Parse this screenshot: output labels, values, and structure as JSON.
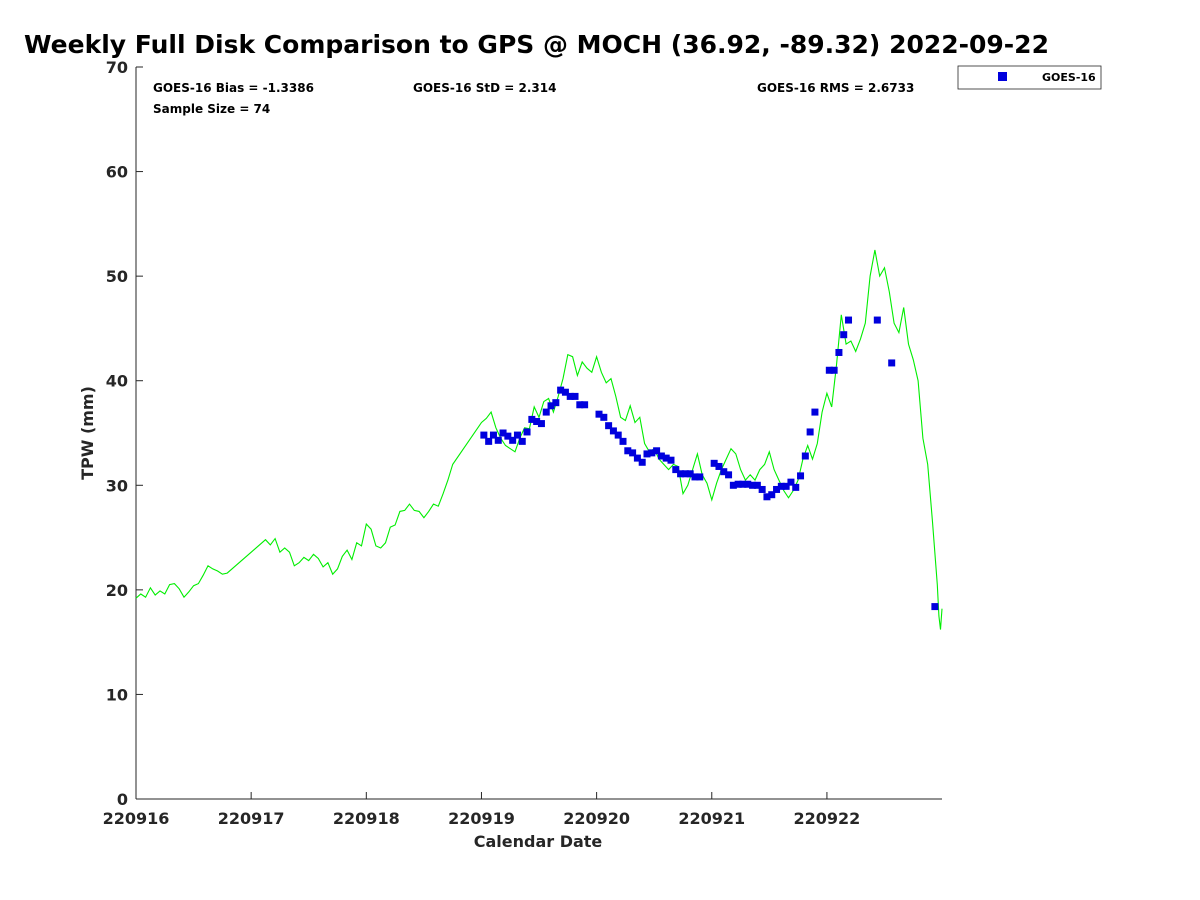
{
  "chart_data": {
    "type": "scatter",
    "title": "Weekly Full Disk Comparison to GPS @ MOCH (36.92, -89.32) 2022-09-22",
    "xlabel": "Calendar Date",
    "ylabel": "TPW (mm)",
    "xlim": [
      "2022-09-16",
      "2022-09-22T23:59"
    ],
    "ylim": [
      0,
      70
    ],
    "x_ticks": [
      {
        "label": "220916",
        "date": "2022-09-16"
      },
      {
        "label": "220917",
        "date": "2022-09-17"
      },
      {
        "label": "220918",
        "date": "2022-09-18"
      },
      {
        "label": "220919",
        "date": "2022-09-19"
      },
      {
        "label": "220920",
        "date": "2022-09-20"
      },
      {
        "label": "220921",
        "date": "2022-09-21"
      },
      {
        "label": "220922",
        "date": "2022-09-22"
      }
    ],
    "y_ticks": [
      0,
      10,
      20,
      30,
      40,
      50,
      60,
      70
    ],
    "stats": {
      "bias": "GOES-16 Bias = -1.3386",
      "std": "GOES-16 StD = 2.314",
      "rms": "GOES-16 RMS = 2.6733",
      "sample": "Sample Size = 74"
    },
    "legend": {
      "position": "top-right",
      "entries": [
        {
          "label": "GOES-16",
          "color": "#0000dd"
        }
      ]
    },
    "gps_line": {
      "color": "#00ee00",
      "points": [
        [
          "2022-09-16T00:00",
          19.2
        ],
        [
          "2022-09-16T01:00",
          19.6
        ],
        [
          "2022-09-16T02:00",
          19.3
        ],
        [
          "2022-09-16T03:00",
          20.2
        ],
        [
          "2022-09-16T04:00",
          19.5
        ],
        [
          "2022-09-16T05:00",
          19.9
        ],
        [
          "2022-09-16T06:00",
          19.6
        ],
        [
          "2022-09-16T07:00",
          20.5
        ],
        [
          "2022-09-16T08:00",
          20.6
        ],
        [
          "2022-09-16T09:00",
          20.1
        ],
        [
          "2022-09-16T10:00",
          19.3
        ],
        [
          "2022-09-16T11:00",
          19.8
        ],
        [
          "2022-09-16T12:00",
          20.4
        ],
        [
          "2022-09-16T13:00",
          20.6
        ],
        [
          "2022-09-16T14:00",
          21.4
        ],
        [
          "2022-09-16T15:00",
          22.3
        ],
        [
          "2022-09-16T16:00",
          22.0
        ],
        [
          "2022-09-16T17:00",
          21.8
        ],
        [
          "2022-09-16T18:00",
          21.5
        ],
        [
          "2022-09-16T19:00",
          21.6
        ],
        [
          "2022-09-17T03:00",
          24.8
        ],
        [
          "2022-09-17T04:00",
          24.3
        ],
        [
          "2022-09-17T05:00",
          24.9
        ],
        [
          "2022-09-17T06:00",
          23.6
        ],
        [
          "2022-09-17T07:00",
          24.0
        ],
        [
          "2022-09-17T08:00",
          23.6
        ],
        [
          "2022-09-17T09:00",
          22.3
        ],
        [
          "2022-09-17T10:00",
          22.6
        ],
        [
          "2022-09-17T11:00",
          23.1
        ],
        [
          "2022-09-17T12:00",
          22.8
        ],
        [
          "2022-09-17T13:00",
          23.4
        ],
        [
          "2022-09-17T14:00",
          23.0
        ],
        [
          "2022-09-17T15:00",
          22.2
        ],
        [
          "2022-09-17T16:00",
          22.6
        ],
        [
          "2022-09-17T17:00",
          21.5
        ],
        [
          "2022-09-17T18:00",
          22.0
        ],
        [
          "2022-09-17T19:00",
          23.2
        ],
        [
          "2022-09-17T20:00",
          23.8
        ],
        [
          "2022-09-17T21:00",
          22.9
        ],
        [
          "2022-09-17T22:00",
          24.5
        ],
        [
          "2022-09-17T23:00",
          24.2
        ],
        [
          "2022-09-18T00:00",
          26.3
        ],
        [
          "2022-09-18T01:00",
          25.8
        ],
        [
          "2022-09-18T02:00",
          24.2
        ],
        [
          "2022-09-18T03:00",
          24.0
        ],
        [
          "2022-09-18T04:00",
          24.5
        ],
        [
          "2022-09-18T05:00",
          26.0
        ],
        [
          "2022-09-18T06:00",
          26.2
        ],
        [
          "2022-09-18T07:00",
          27.5
        ],
        [
          "2022-09-18T08:00",
          27.6
        ],
        [
          "2022-09-18T09:00",
          28.2
        ],
        [
          "2022-09-18T10:00",
          27.6
        ],
        [
          "2022-09-18T11:00",
          27.5
        ],
        [
          "2022-09-18T12:00",
          26.9
        ],
        [
          "2022-09-18T13:00",
          27.5
        ],
        [
          "2022-09-18T14:00",
          28.2
        ],
        [
          "2022-09-18T15:00",
          28.0
        ],
        [
          "2022-09-18T16:00",
          29.2
        ],
        [
          "2022-09-18T17:00",
          30.5
        ],
        [
          "2022-09-18T18:00",
          32.0
        ],
        [
          "2022-09-19T00:00",
          36.0
        ],
        [
          "2022-09-19T01:00",
          36.4
        ],
        [
          "2022-09-19T02:00",
          37.0
        ],
        [
          "2022-09-19T03:00",
          35.5
        ],
        [
          "2022-09-19T04:00",
          34.5
        ],
        [
          "2022-09-19T05:00",
          33.8
        ],
        [
          "2022-09-19T06:00",
          33.5
        ],
        [
          "2022-09-19T07:00",
          33.2
        ],
        [
          "2022-09-19T08:00",
          34.5
        ],
        [
          "2022-09-19T09:00",
          35.5
        ],
        [
          "2022-09-19T10:00",
          35.4
        ],
        [
          "2022-09-19T11:00",
          37.5
        ],
        [
          "2022-09-19T12:00",
          36.5
        ],
        [
          "2022-09-19T13:00",
          38.0
        ],
        [
          "2022-09-19T14:00",
          38.3
        ],
        [
          "2022-09-19T15:00",
          37.0
        ],
        [
          "2022-09-19T16:00",
          38.5
        ],
        [
          "2022-09-19T17:00",
          40.2
        ],
        [
          "2022-09-19T18:00",
          42.5
        ],
        [
          "2022-09-19T19:00",
          42.3
        ],
        [
          "2022-09-19T20:00",
          40.5
        ],
        [
          "2022-09-19T21:00",
          41.8
        ],
        [
          "2022-09-19T22:00",
          41.2
        ],
        [
          "2022-09-19T23:00",
          40.8
        ],
        [
          "2022-09-20T00:00",
          42.3
        ],
        [
          "2022-09-20T01:00",
          40.8
        ],
        [
          "2022-09-20T02:00",
          39.8
        ],
        [
          "2022-09-20T03:00",
          40.2
        ],
        [
          "2022-09-20T04:00",
          38.5
        ],
        [
          "2022-09-20T05:00",
          36.5
        ],
        [
          "2022-09-20T06:00",
          36.2
        ],
        [
          "2022-09-20T07:00",
          37.6
        ],
        [
          "2022-09-20T08:00",
          36.0
        ],
        [
          "2022-09-20T09:00",
          36.5
        ],
        [
          "2022-09-20T10:00",
          34.0
        ],
        [
          "2022-09-20T11:00",
          33.2
        ],
        [
          "2022-09-20T12:00",
          33.5
        ],
        [
          "2022-09-20T13:00",
          32.5
        ],
        [
          "2022-09-20T14:00",
          32.0
        ],
        [
          "2022-09-20T15:00",
          31.5
        ],
        [
          "2022-09-20T16:00",
          32.0
        ],
        [
          "2022-09-20T17:00",
          31.8
        ],
        [
          "2022-09-20T18:00",
          29.2
        ],
        [
          "2022-09-20T19:00",
          30.0
        ],
        [
          "2022-09-20T20:00",
          31.5
        ],
        [
          "2022-09-20T21:00",
          33.0
        ],
        [
          "2022-09-20T22:00",
          31.0
        ],
        [
          "2022-09-20T23:00",
          30.2
        ],
        [
          "2022-09-21T00:00",
          28.6
        ],
        [
          "2022-09-21T01:00",
          30.2
        ],
        [
          "2022-09-21T02:00",
          31.5
        ],
        [
          "2022-09-21T03:00",
          32.5
        ],
        [
          "2022-09-21T04:00",
          33.5
        ],
        [
          "2022-09-21T05:00",
          33.0
        ],
        [
          "2022-09-21T06:00",
          31.5
        ],
        [
          "2022-09-21T07:00",
          30.5
        ],
        [
          "2022-09-21T08:00",
          31.0
        ],
        [
          "2022-09-21T09:00",
          30.5
        ],
        [
          "2022-09-21T10:00",
          31.5
        ],
        [
          "2022-09-21T11:00",
          32.0
        ],
        [
          "2022-09-21T12:00",
          33.2
        ],
        [
          "2022-09-21T13:00",
          31.5
        ],
        [
          "2022-09-21T14:00",
          30.5
        ],
        [
          "2022-09-21T15:00",
          29.5
        ],
        [
          "2022-09-21T16:00",
          28.8
        ],
        [
          "2022-09-21T17:00",
          29.5
        ],
        [
          "2022-09-21T18:00",
          30.5
        ],
        [
          "2022-09-21T19:00",
          32.5
        ],
        [
          "2022-09-21T20:00",
          33.8
        ],
        [
          "2022-09-21T21:00",
          32.5
        ],
        [
          "2022-09-21T22:00",
          34.0
        ],
        [
          "2022-09-21T23:00",
          37.0
        ],
        [
          "2022-09-22T00:00",
          38.8
        ],
        [
          "2022-09-22T01:00",
          37.5
        ],
        [
          "2022-09-22T02:00",
          41.5
        ],
        [
          "2022-09-22T03:00",
          46.3
        ],
        [
          "2022-09-22T04:00",
          43.5
        ],
        [
          "2022-09-22T05:00",
          43.8
        ],
        [
          "2022-09-22T06:00",
          42.8
        ],
        [
          "2022-09-22T07:00",
          44.0
        ],
        [
          "2022-09-22T08:00",
          45.5
        ],
        [
          "2022-09-22T09:00",
          50.0
        ],
        [
          "2022-09-22T10:00",
          52.5
        ],
        [
          "2022-09-22T11:00",
          50.0
        ],
        [
          "2022-09-22T12:00",
          50.8
        ],
        [
          "2022-09-22T13:00",
          48.5
        ],
        [
          "2022-09-22T14:00",
          45.5
        ],
        [
          "2022-09-22T15:00",
          44.6
        ],
        [
          "2022-09-22T16:00",
          47.0
        ],
        [
          "2022-09-22T17:00",
          43.5
        ],
        [
          "2022-09-22T18:00",
          42.0
        ],
        [
          "2022-09-22T19:00",
          40.0
        ],
        [
          "2022-09-22T20:00",
          34.5
        ],
        [
          "2022-09-22T21:00",
          32.0
        ],
        [
          "2022-09-22T22:00",
          26.5
        ],
        [
          "2022-09-22T23:00",
          20.5
        ],
        [
          "2022-09-22T23:20",
          17.5
        ],
        [
          "2022-09-22T23:40",
          16.2
        ],
        [
          "2022-09-22T23:59",
          18.2
        ]
      ]
    },
    "series": [
      {
        "name": "GOES-16",
        "color": "#0000dd",
        "points": [
          [
            "2022-09-19T00:30",
            34.8
          ],
          [
            "2022-09-19T01:30",
            34.2
          ],
          [
            "2022-09-19T02:30",
            34.8
          ],
          [
            "2022-09-19T03:30",
            34.3
          ],
          [
            "2022-09-19T04:30",
            35.0
          ],
          [
            "2022-09-19T05:30",
            34.7
          ],
          [
            "2022-09-19T06:30",
            34.3
          ],
          [
            "2022-09-19T07:30",
            34.8
          ],
          [
            "2022-09-19T08:30",
            34.2
          ],
          [
            "2022-09-19T09:30",
            35.1
          ],
          [
            "2022-09-19T10:30",
            36.3
          ],
          [
            "2022-09-19T11:30",
            36.1
          ],
          [
            "2022-09-19T12:30",
            35.9
          ],
          [
            "2022-09-19T13:30",
            37.0
          ],
          [
            "2022-09-19T14:30",
            37.6
          ],
          [
            "2022-09-19T15:30",
            37.9
          ],
          [
            "2022-09-19T16:30",
            39.1
          ],
          [
            "2022-09-19T17:30",
            38.9
          ],
          [
            "2022-09-19T18:30",
            38.5
          ],
          [
            "2022-09-19T19:30",
            38.5
          ],
          [
            "2022-09-19T20:30",
            37.7
          ],
          [
            "2022-09-19T21:30",
            37.7
          ],
          [
            "2022-09-20T00:30",
            36.8
          ],
          [
            "2022-09-20T01:30",
            36.5
          ],
          [
            "2022-09-20T02:30",
            35.7
          ],
          [
            "2022-09-20T03:30",
            35.2
          ],
          [
            "2022-09-20T04:30",
            34.8
          ],
          [
            "2022-09-20T05:30",
            34.2
          ],
          [
            "2022-09-20T06:30",
            33.3
          ],
          [
            "2022-09-20T07:30",
            33.1
          ],
          [
            "2022-09-20T08:30",
            32.6
          ],
          [
            "2022-09-20T09:30",
            32.2
          ],
          [
            "2022-09-20T10:30",
            33.0
          ],
          [
            "2022-09-20T11:30",
            33.1
          ],
          [
            "2022-09-20T12:30",
            33.3
          ],
          [
            "2022-09-20T13:30",
            32.8
          ],
          [
            "2022-09-20T14:30",
            32.6
          ],
          [
            "2022-09-20T15:30",
            32.4
          ],
          [
            "2022-09-20T16:30",
            31.5
          ],
          [
            "2022-09-20T17:30",
            31.1
          ],
          [
            "2022-09-20T18:30",
            31.1
          ],
          [
            "2022-09-20T19:30",
            31.1
          ],
          [
            "2022-09-20T20:30",
            30.8
          ],
          [
            "2022-09-20T21:30",
            30.8
          ],
          [
            "2022-09-21T00:30",
            32.1
          ],
          [
            "2022-09-21T01:30",
            31.8
          ],
          [
            "2022-09-21T02:30",
            31.3
          ],
          [
            "2022-09-21T03:30",
            31.0
          ],
          [
            "2022-09-21T04:30",
            30.0
          ],
          [
            "2022-09-21T05:30",
            30.1
          ],
          [
            "2022-09-21T06:30",
            30.1
          ],
          [
            "2022-09-21T07:30",
            30.1
          ],
          [
            "2022-09-21T08:30",
            30.0
          ],
          [
            "2022-09-21T09:30",
            30.0
          ],
          [
            "2022-09-21T10:30",
            29.6
          ],
          [
            "2022-09-21T11:30",
            28.9
          ],
          [
            "2022-09-21T12:30",
            29.1
          ],
          [
            "2022-09-21T13:30",
            29.6
          ],
          [
            "2022-09-21T14:30",
            29.9
          ],
          [
            "2022-09-21T15:30",
            29.9
          ],
          [
            "2022-09-21T16:30",
            30.3
          ],
          [
            "2022-09-21T17:30",
            29.8
          ],
          [
            "2022-09-21T18:30",
            30.9
          ],
          [
            "2022-09-21T19:30",
            32.8
          ],
          [
            "2022-09-21T20:30",
            35.1
          ],
          [
            "2022-09-21T21:30",
            37.0
          ],
          [
            "2022-09-22T00:30",
            41.0
          ],
          [
            "2022-09-22T01:30",
            41.0
          ],
          [
            "2022-09-22T02:30",
            42.7
          ],
          [
            "2022-09-22T03:30",
            44.4
          ],
          [
            "2022-09-22T04:30",
            45.8
          ],
          [
            "2022-09-22T10:30",
            45.8
          ],
          [
            "2022-09-22T13:30",
            41.7
          ],
          [
            "2022-09-22T22:30",
            18.4
          ]
        ]
      }
    ]
  }
}
